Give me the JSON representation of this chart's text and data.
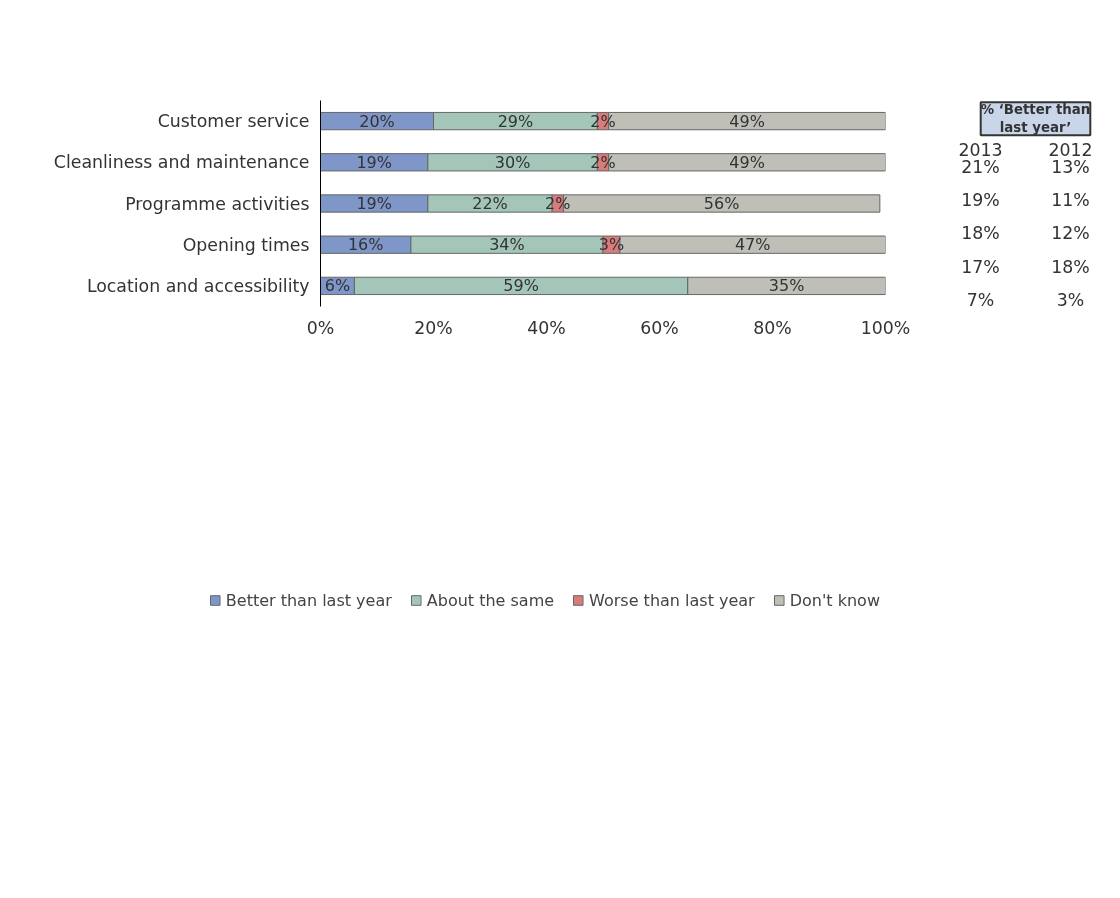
{
  "chart_data": {
    "type": "bar",
    "orientation": "horizontal",
    "stacked": true,
    "categories": [
      "Customer service",
      "Cleanliness and maintenance",
      "Programme activities",
      "Opening times",
      "Location and accessibility"
    ],
    "series": [
      {
        "name": "Better than last year",
        "color": "#7f96c8",
        "values": [
          20,
          19,
          19,
          16,
          6
        ],
        "value_labels": [
          "20%",
          "19%",
          "19%",
          "16%",
          "6%"
        ]
      },
      {
        "name": "About the same",
        "color": "#a3c6b8",
        "values": [
          29,
          30,
          22,
          34,
          59
        ],
        "value_labels": [
          "29%",
          "30%",
          "22%",
          "34%",
          "59%"
        ]
      },
      {
        "name": "Worse than last year",
        "color": "#d77b7b",
        "values": [
          2,
          2,
          2,
          3,
          0
        ],
        "value_labels": [
          "2%",
          "2%",
          "2%",
          "3%",
          null
        ]
      },
      {
        "name": "Don't know",
        "color": "#bfbfb8",
        "values": [
          49,
          49,
          56,
          47,
          35
        ],
        "value_labels": [
          "49%",
          "49%",
          "56%",
          "47%",
          "35%"
        ]
      }
    ],
    "xlim": [
      0,
      100
    ],
    "xticks": [
      {
        "value": 0,
        "label": "0%"
      },
      {
        "value": 20,
        "label": "20%"
      },
      {
        "value": 40,
        "label": "40%"
      },
      {
        "value": 60,
        "label": "60%"
      },
      {
        "value": 80,
        "label": "80%"
      },
      {
        "value": 100,
        "label": "100%"
      }
    ],
    "legend": "bottom",
    "grid": false,
    "annotations": [
      "% ‘Better than last year’",
      "2013",
      "2012",
      "21%",
      "13%",
      "19%",
      "11%",
      "18%",
      "12%",
      "17%",
      "18%",
      "7%",
      "3%"
    ]
  }
}
